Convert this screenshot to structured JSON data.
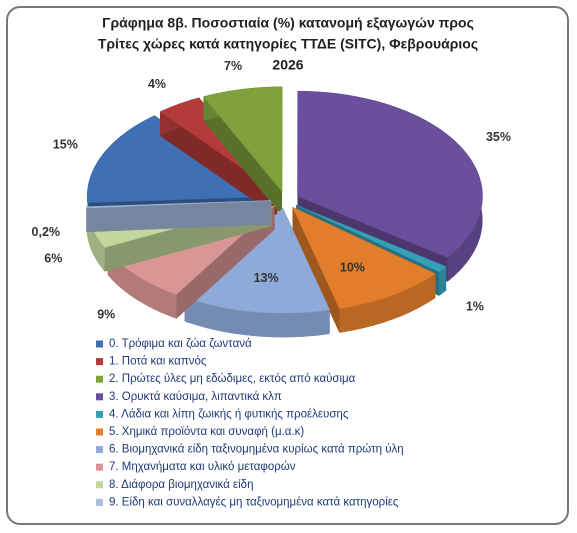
{
  "chart_data": {
    "type": "pie3d",
    "title": [
      "Γράφημα 8β. Ποσοστιαία (%) κατανομή εξαγωγών προς",
      "Τρίτες χώρες κατά κατηγορίες ΤΤΔΕ (SITC),  Φεβρουάριος",
      "2026"
    ],
    "categories": [
      "0. Τρόφιμα και ζώα ζωντανά",
      "1. Ποτά και καπνός",
      "2. Πρώτες ύλες μη εδώδιμες, εκτός από καύσιμα",
      "3. Ορυκτά καύσιμα, λιπαντικά κλπ",
      "4. Λάδια και λίπη ζωικής ή φυτικής προέλευσης",
      "5. Χημικά προϊόντα και συναφή (μ.α.κ)",
      "6. Βιομηχανικά είδη ταξινομημένα κυρίως κατά πρώτη ύλη",
      "7. Μηχανήματα και υλικό μεταφορών",
      "8. Διάφορα βιομηχανικά είδη",
      "9. Είδη και συναλλαγές μη ταξινομημένα κατά κατηγορίες"
    ],
    "values": [
      15,
      4,
      7,
      35,
      1,
      10,
      13,
      9,
      6,
      0.2
    ],
    "value_labels": [
      "15%",
      "4%",
      "7%",
      "35%",
      "1%",
      "10%",
      "13%",
      "9%",
      "6%",
      "0,2%"
    ],
    "colors": [
      "#3f6fb5",
      "#b53a3a",
      "#7fa23c",
      "#6b4f9c",
      "#36a0b8",
      "#e27d2b",
      "#8eaad9",
      "#d99695",
      "#c3d79c",
      "#a9bfe2"
    ],
    "legend": "bottom"
  }
}
